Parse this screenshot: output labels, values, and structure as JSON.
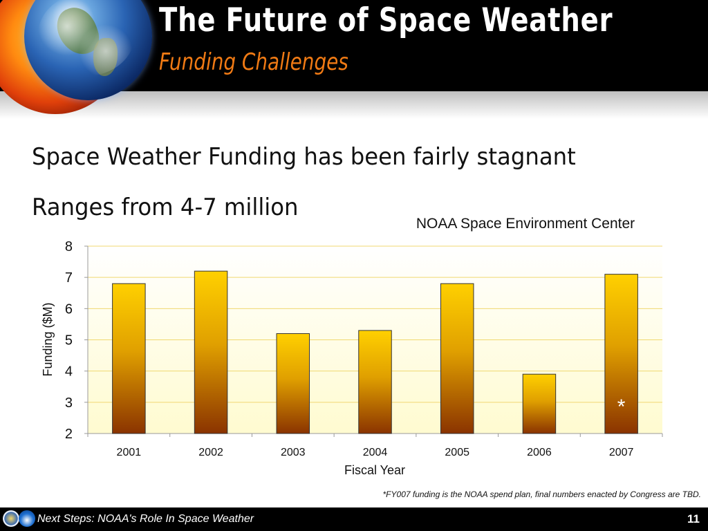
{
  "header": {
    "title": "The Future of Space Weather",
    "subtitle": "Funding Challenges"
  },
  "bullets": [
    "Space Weather Funding has been fairly stagnant",
    "Ranges from 4-7 million"
  ],
  "chart_data": {
    "type": "bar",
    "title": "NOAA Space Environment Center",
    "xlabel": "Fiscal Year",
    "ylabel": "Funding ($M)",
    "categories": [
      "2001",
      "2002",
      "2003",
      "2004",
      "2005",
      "2006",
      "2007"
    ],
    "values": [
      6.8,
      7.2,
      5.2,
      5.3,
      6.8,
      3.9,
      7.1
    ],
    "ylim": [
      2,
      8
    ],
    "yticks": [
      2,
      3,
      4,
      5,
      6,
      7,
      8
    ],
    "grid": true,
    "annotation": {
      "category": "2007",
      "text": "*"
    },
    "colors": {
      "bar_top": "#ffd000",
      "bar_bottom": "#8a3300",
      "plot_bg": "#fffbd0",
      "grid": "#f0d870"
    }
  },
  "footnote": "*FY007 funding is the NOAA spend plan, final numbers enacted by Congress are TBD.",
  "footer": {
    "text": "Next Steps: NOAA's Role In Space Weather",
    "page": "11"
  }
}
